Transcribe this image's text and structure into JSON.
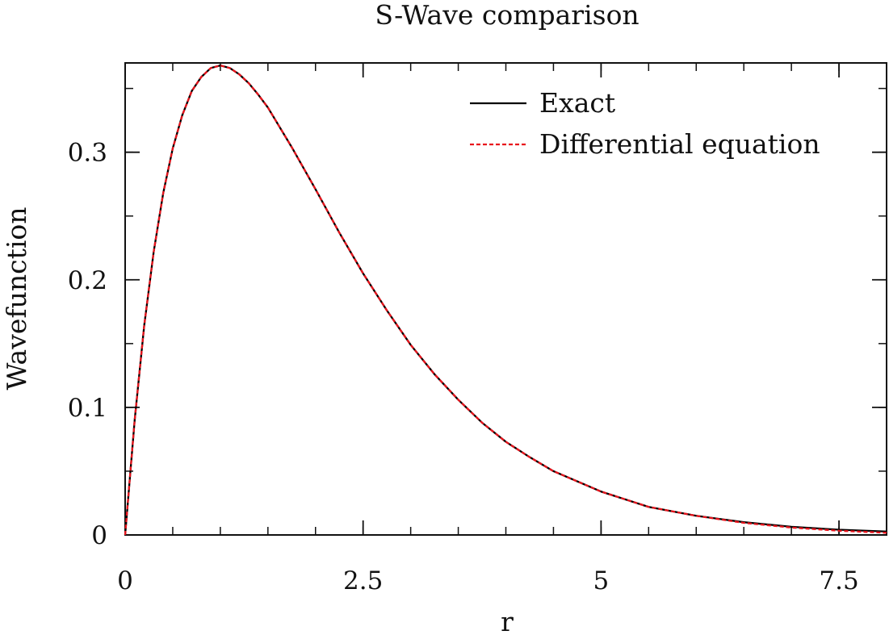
{
  "chart_data": {
    "type": "line",
    "title": "S-Wave comparison",
    "xlabel": "r",
    "ylabel": "Wavefunction",
    "xlim": [
      0,
      8
    ],
    "ylim": [
      0,
      0.37
    ],
    "xticks": [
      0,
      2.5,
      5,
      7.5
    ],
    "xtick_labels": [
      "0",
      "2.5",
      "5",
      "7.5"
    ],
    "yticks": [
      0,
      0.1,
      0.2,
      0.3
    ],
    "ytick_labels": [
      "0",
      "0.1",
      "0.2",
      "0.3"
    ],
    "x_minor_step": 0.5,
    "y_minor_step": 0.05,
    "grid": false,
    "legend_position": "top-right",
    "series": [
      {
        "name": "Exact",
        "color": "#000000",
        "style": "solid",
        "x": [
          0,
          0.1,
          0.2,
          0.3,
          0.4,
          0.5,
          0.6,
          0.7,
          0.8,
          0.9,
          1.0,
          1.1,
          1.2,
          1.3,
          1.4,
          1.5,
          1.75,
          2.0,
          2.25,
          2.5,
          2.75,
          3.0,
          3.25,
          3.5,
          3.75,
          4.0,
          4.25,
          4.5,
          5.0,
          5.5,
          6.0,
          6.5,
          7.0,
          7.5,
          8.0
        ],
        "y": [
          0,
          0.09,
          0.164,
          0.222,
          0.268,
          0.303,
          0.329,
          0.348,
          0.359,
          0.366,
          0.368,
          0.366,
          0.361,
          0.354,
          0.345,
          0.335,
          0.304,
          0.271,
          0.237,
          0.205,
          0.176,
          0.149,
          0.126,
          0.106,
          0.088,
          0.073,
          0.061,
          0.05,
          0.034,
          0.022,
          0.015,
          0.01,
          0.0064,
          0.0041,
          0.0027
        ]
      },
      {
        "name": "Differential equation",
        "color": "#e8141c",
        "style": "dashed",
        "x": [
          0,
          0.1,
          0.2,
          0.3,
          0.4,
          0.5,
          0.6,
          0.7,
          0.8,
          0.9,
          1.0,
          1.1,
          1.2,
          1.3,
          1.4,
          1.5,
          1.75,
          2.0,
          2.25,
          2.5,
          2.75,
          3.0,
          3.25,
          3.5,
          3.75,
          4.0,
          4.25,
          4.5,
          5.0,
          5.5,
          6.0,
          6.5,
          7.0,
          7.5,
          8.0
        ],
        "y": [
          0,
          0.09,
          0.164,
          0.222,
          0.268,
          0.303,
          0.329,
          0.348,
          0.359,
          0.366,
          0.368,
          0.366,
          0.361,
          0.354,
          0.345,
          0.335,
          0.304,
          0.271,
          0.237,
          0.205,
          0.176,
          0.149,
          0.126,
          0.106,
          0.088,
          0.073,
          0.061,
          0.05,
          0.034,
          0.022,
          0.015,
          0.0095,
          0.0058,
          0.0033,
          0.0017
        ]
      }
    ]
  }
}
